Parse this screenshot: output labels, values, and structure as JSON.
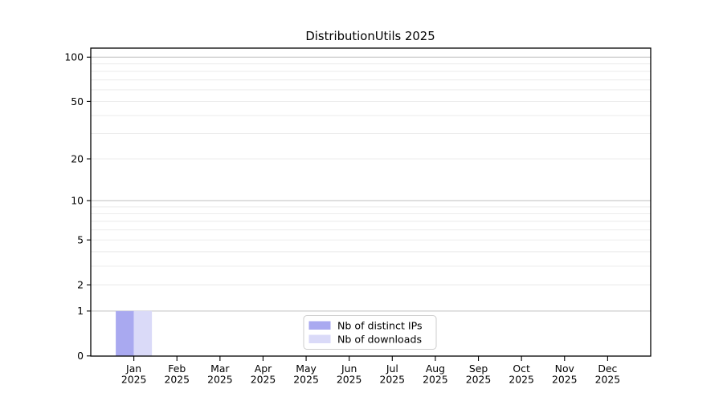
{
  "title": "DistributionUtils 2025",
  "chart_data": {
    "type": "bar",
    "title": "DistributionUtils 2025",
    "categories": [
      "Jan 2025",
      "Feb 2025",
      "Mar 2025",
      "Apr 2025",
      "May 2025",
      "Jun 2025",
      "Jul 2025",
      "Aug 2025",
      "Sep 2025",
      "Oct 2025",
      "Nov 2025",
      "Dec 2025"
    ],
    "series": [
      {
        "name": "Nb of distinct IPs",
        "color": "#a9a9f0",
        "values": [
          1,
          0,
          0,
          0,
          0,
          0,
          0,
          0,
          0,
          0,
          0,
          0
        ]
      },
      {
        "name": "Nb of downloads",
        "color": "#dadaf8",
        "values": [
          1,
          0,
          0,
          0,
          0,
          0,
          0,
          0,
          0,
          0,
          0,
          0
        ]
      }
    ],
    "xlabel": "",
    "ylabel": "",
    "yscale": "log1p",
    "ylim": [
      0,
      115
    ],
    "ytick_values": [
      0,
      1,
      2,
      5,
      10,
      20,
      50,
      100
    ],
    "ytick_labels": [
      "0",
      "1",
      "2",
      "5",
      "10",
      "20",
      "50",
      "100"
    ],
    "minor_grid_values": [
      2,
      3,
      4,
      5,
      6,
      7,
      8,
      9,
      20,
      30,
      40,
      50,
      60,
      70,
      80,
      90
    ],
    "major_grid_values": [
      1,
      10,
      100
    ],
    "grid": "on",
    "legend_position": "lower-center-inside"
  },
  "colors": {
    "background": "#ffffff",
    "axis": "#000000",
    "grid_major": "#bfbfbf",
    "grid_minor": "#e9e9e9",
    "legend_border": "#cccccc",
    "legend_background": "#ffffff"
  }
}
